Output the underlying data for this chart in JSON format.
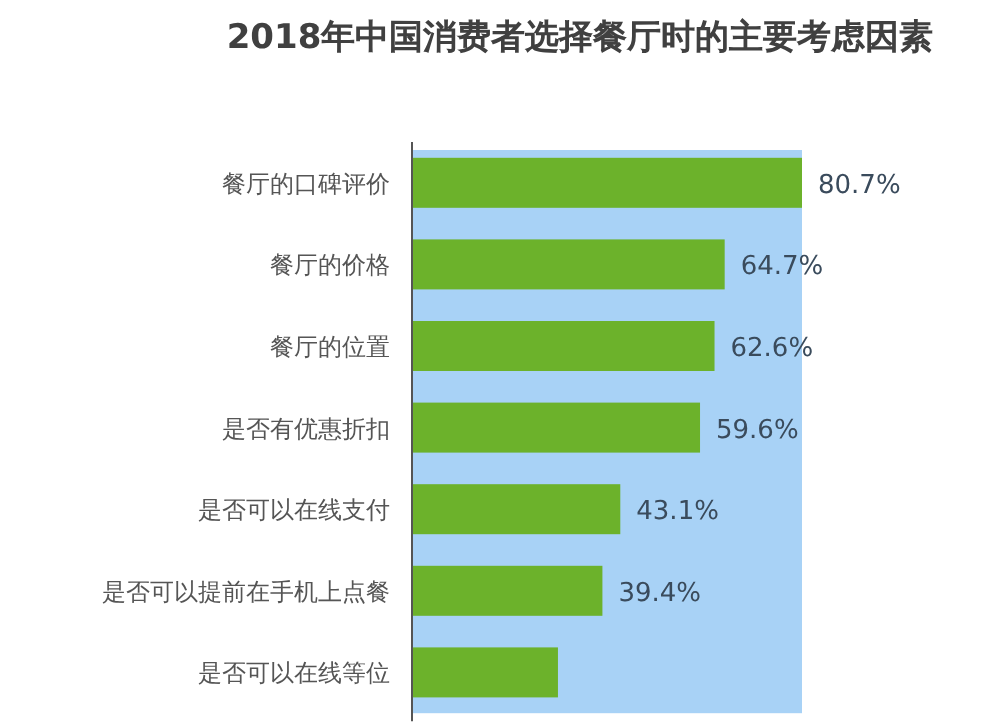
{
  "chart_data": {
    "type": "bar",
    "orientation": "horizontal",
    "title": "2018年中国消费者选择餐厅时的主要考虑因素",
    "categories": [
      "餐厅的口碑评价",
      "餐厅的价格",
      "餐厅的位置",
      "是否有优惠折扣",
      "是否可以在线支付",
      "是否可以提前在手机上点餐",
      "是否可以在线等位"
    ],
    "values": [
      80.7,
      64.7,
      62.6,
      59.6,
      43.1,
      39.4,
      30.2
    ],
    "value_labels": [
      "80.7%",
      "64.7%",
      "62.6%",
      "59.6%",
      "43.1%",
      "39.4%",
      null
    ],
    "color": "#6cb22b",
    "bands": [
      {
        "axis": "x",
        "from": 0,
        "to": 80.7,
        "color": "#a8d2f6"
      }
    ]
  }
}
